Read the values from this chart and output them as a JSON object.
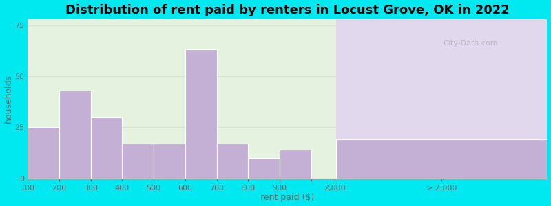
{
  "title": "Distribution of rent paid by renters in Locust Grove, OK in 2022",
  "xlabel": "rent paid ($)",
  "ylabel": "households",
  "bar_color": "#c4b0d4",
  "bar_edge_color": "#ffffff",
  "background_outer": "#00e8f0",
  "background_inner_left": "#e4f2df",
  "background_inner_right": "#e2d8ee",
  "yticks": [
    0,
    25,
    50,
    75
  ],
  "ylim": [
    0,
    78
  ],
  "categories": [
    "100",
    "200",
    "300",
    "400",
    "500",
    "600",
    "700",
    "800",
    "900"
  ],
  "values": [
    25,
    43,
    30,
    17,
    17,
    63,
    17,
    10,
    14
  ],
  "gt2000_value": 19,
  "title_fontsize": 13,
  "axis_label_fontsize": 9,
  "tick_fontsize": 8
}
